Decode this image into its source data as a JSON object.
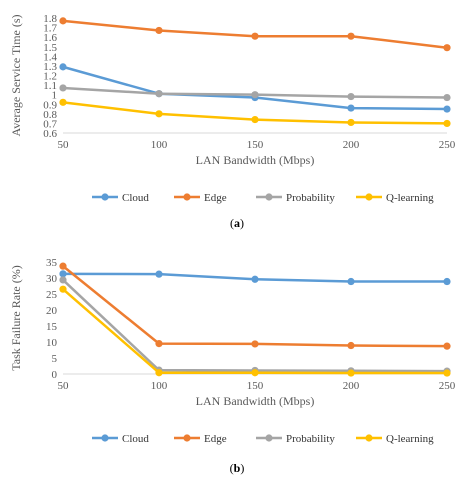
{
  "chart_data": [
    {
      "type": "line",
      "panel_label": "a",
      "xlabel": "LAN Bandwidth (Mbps)",
      "ylabel": "Average Service Time (s)",
      "x": [
        50,
        100,
        150,
        200,
        250
      ],
      "x_tick_labels": [
        "50",
        "100",
        "150",
        "200",
        "250"
      ],
      "ylim": [
        0.6,
        1.8
      ],
      "y_tick_labels": [
        "0.6",
        "0.7",
        "0.8",
        "0.9",
        "1",
        "1.1",
        "1.2",
        "1.3",
        "1.4",
        "1.5",
        "1.6",
        "1.7",
        "1.8"
      ],
      "grid": false,
      "legend": "bottom",
      "series": [
        {
          "name": "Cloud",
          "color": "#5B9BD5",
          "values": [
            1.29,
            1.01,
            0.97,
            0.86,
            0.85
          ]
        },
        {
          "name": "Edge",
          "color": "#ED7D31",
          "values": [
            1.77,
            1.67,
            1.61,
            1.61,
            1.49
          ]
        },
        {
          "name": "Probability",
          "color": "#A5A5A5",
          "values": [
            1.07,
            1.01,
            1.0,
            0.98,
            0.97
          ]
        },
        {
          "name": "Q-learning",
          "color": "#FFC000",
          "values": [
            0.92,
            0.8,
            0.74,
            0.71,
            0.7
          ]
        }
      ]
    },
    {
      "type": "line",
      "panel_label": "b",
      "xlabel": "LAN Bandwidth (Mbps)",
      "ylabel": "Task Failure Rate (%)",
      "x": [
        50,
        100,
        150,
        200,
        250
      ],
      "x_tick_labels": [
        "50",
        "100",
        "150",
        "200",
        "250"
      ],
      "ylim": [
        0,
        35
      ],
      "y_tick_labels": [
        "0",
        "5",
        "10",
        "15",
        "20",
        "25",
        "30",
        "35"
      ],
      "grid": false,
      "legend": "bottom",
      "series": [
        {
          "name": "Cloud",
          "color": "#5B9BD5",
          "values": [
            31.3,
            31.2,
            29.6,
            28.9,
            28.9
          ]
        },
        {
          "name": "Edge",
          "color": "#ED7D31",
          "values": [
            33.7,
            9.5,
            9.4,
            8.9,
            8.7
          ]
        },
        {
          "name": "Probability",
          "color": "#A5A5A5",
          "values": [
            29.4,
            1.2,
            1.1,
            1.0,
            0.9
          ]
        },
        {
          "name": "Q-learning",
          "color": "#FFC000",
          "values": [
            26.5,
            0.4,
            0.4,
            0.3,
            0.3
          ]
        }
      ]
    }
  ]
}
